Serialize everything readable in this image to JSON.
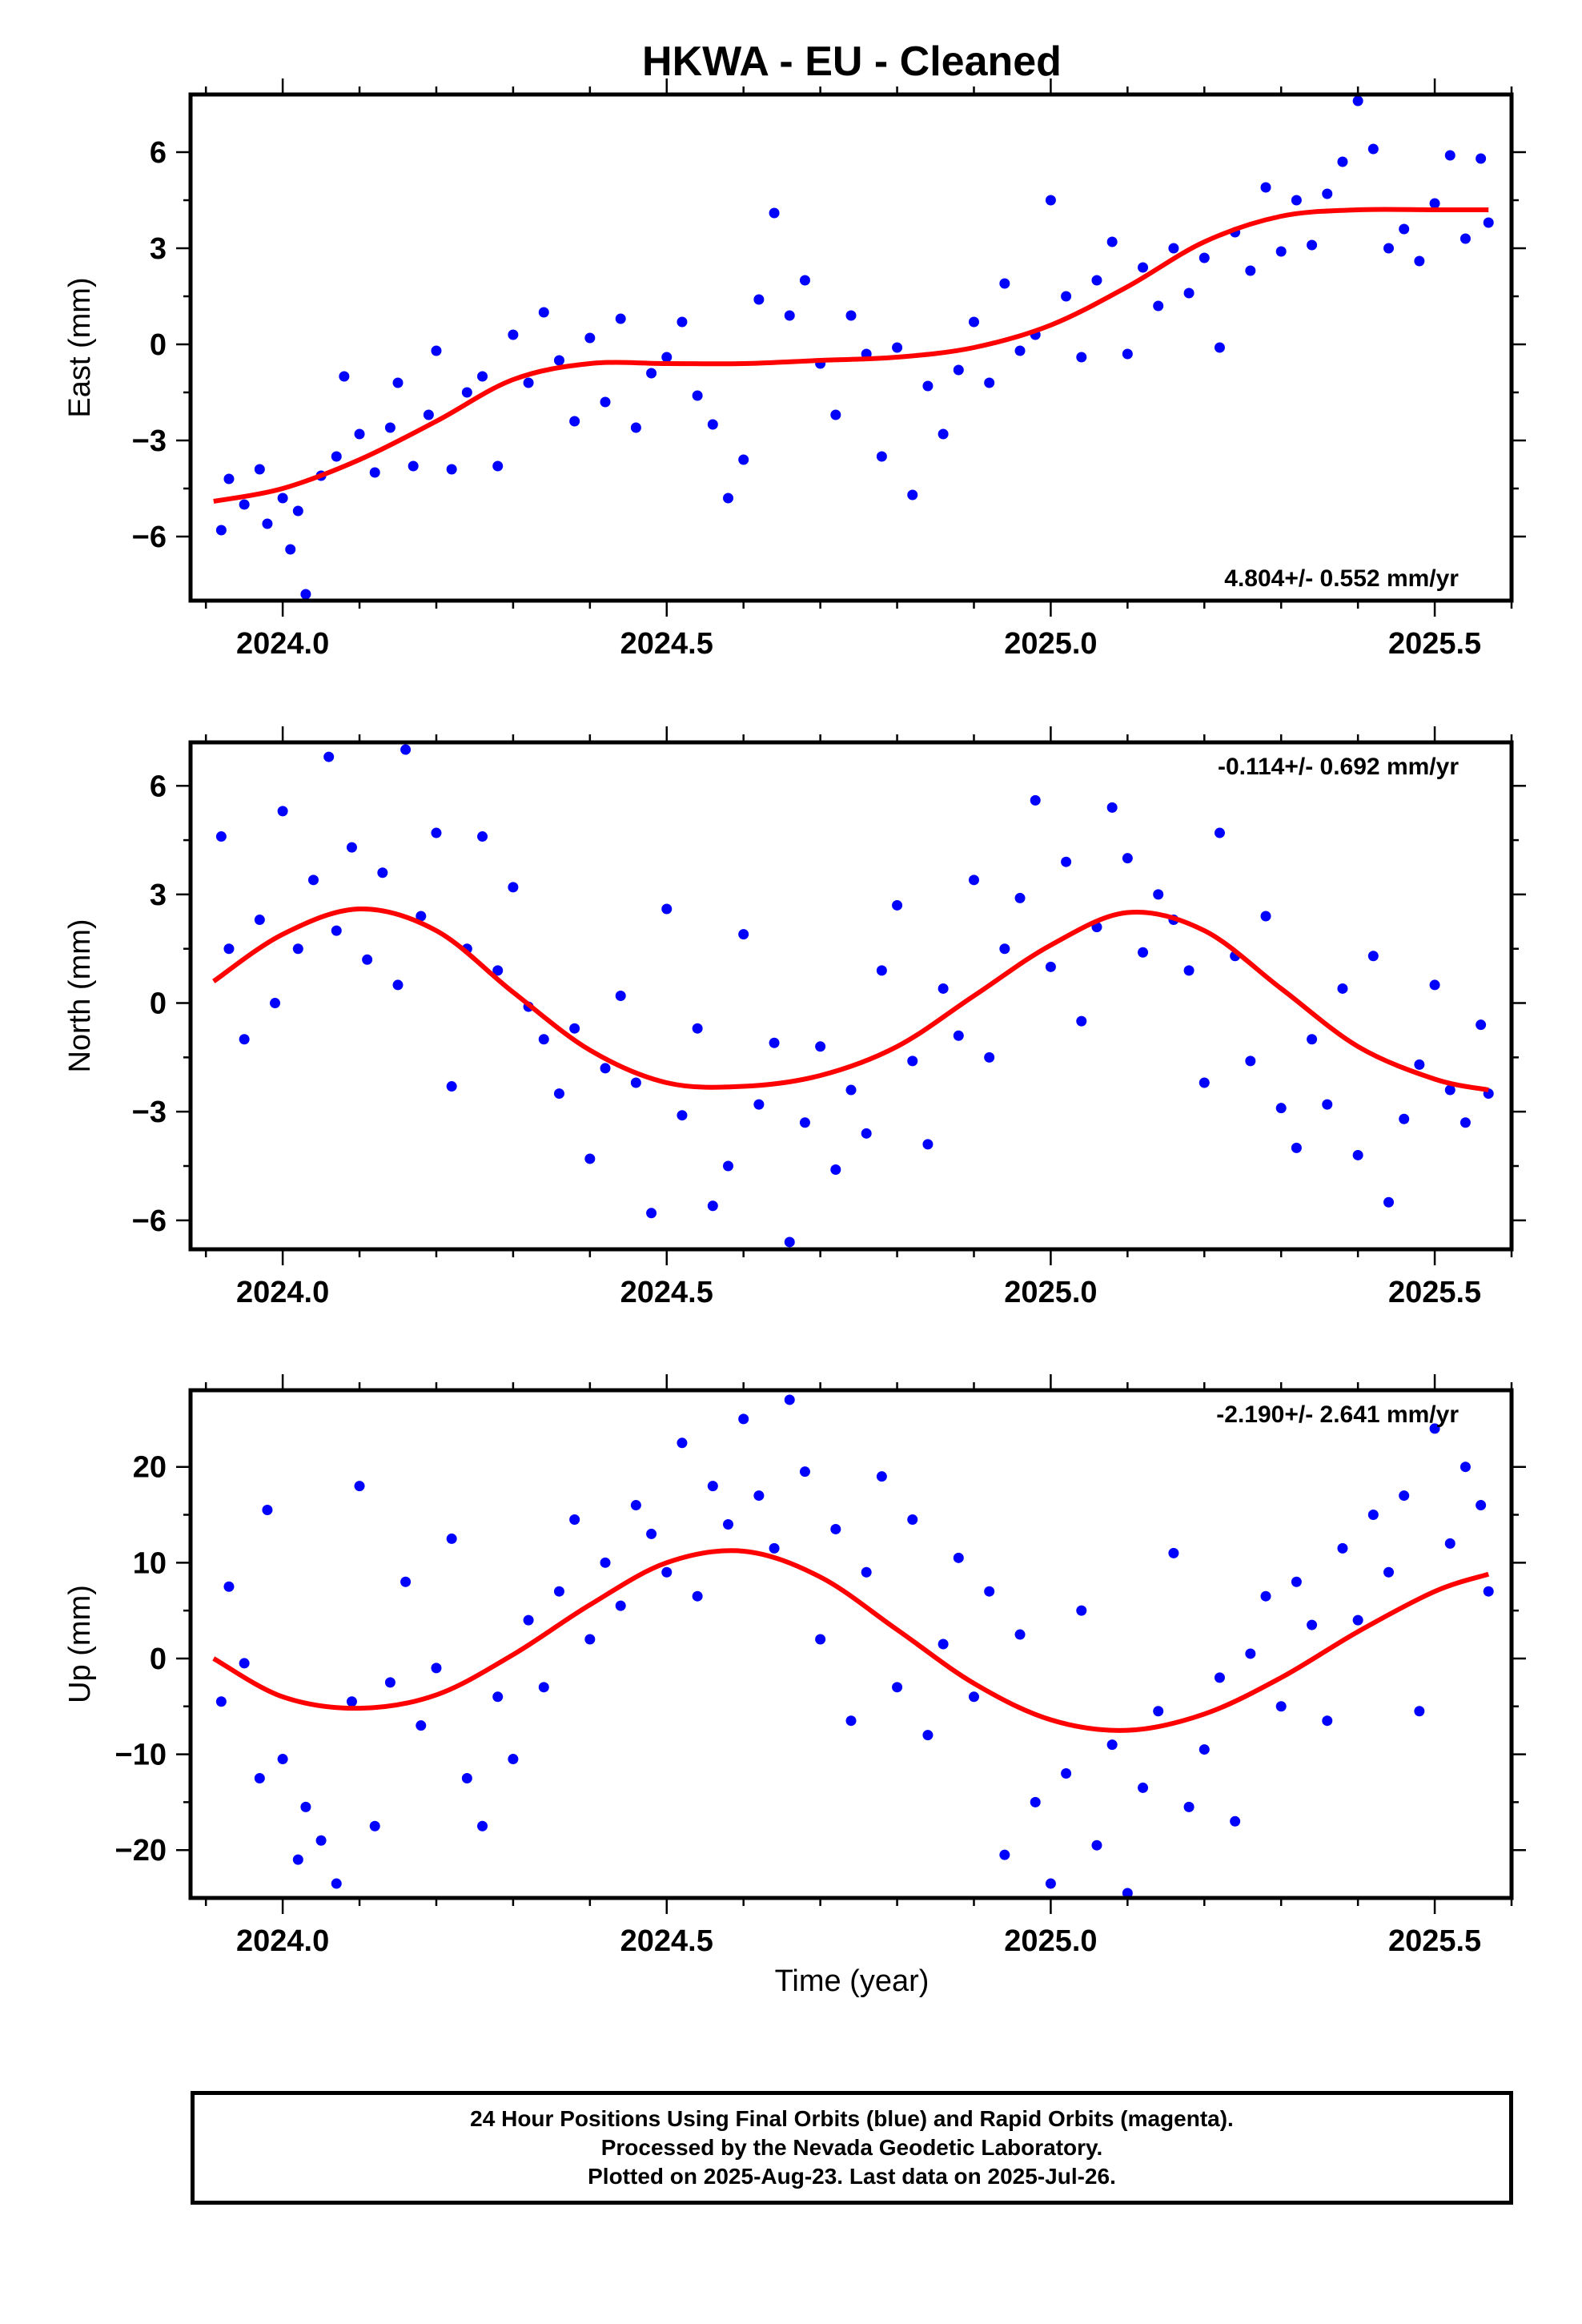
{
  "title": "HKWA  - EU - Cleaned",
  "xlabel": "Time (year)",
  "colors": {
    "points": "#0000ff",
    "fit": "#ff0000",
    "axes": "#000000"
  },
  "footer": {
    "line1": "24 Hour Positions Using Final Orbits (blue) and Rapid Orbits (magenta).",
    "line2": "Processed by the Nevada Geodetic Laboratory.",
    "line3": "Plotted on 2025-Aug-23. Last data on 2025-Jul-26."
  },
  "chart_data": [
    {
      "type": "scatter",
      "id": "east",
      "ylabel": "East (mm)",
      "xlim": [
        2023.88,
        2025.6
      ],
      "ylim": [
        -8,
        7.8
      ],
      "xticks": [
        2024.0,
        2024.5,
        2025.0,
        2025.5
      ],
      "xtick_labels": [
        "2024.0",
        "2024.5",
        "2025.0",
        "2025.5"
      ],
      "yticks": [
        -6,
        -3,
        0,
        3,
        6
      ],
      "ytick_labels": [
        "−6",
        "−3",
        "0",
        "3",
        "6"
      ],
      "annotation": "4.804+/- 0.552 mm/yr",
      "annotation_position": "bottom-right",
      "fit": {
        "x": [
          2023.91,
          2024.0,
          2024.1,
          2024.2,
          2024.3,
          2024.4,
          2024.5,
          2024.6,
          2024.7,
          2024.8,
          2024.9,
          2025.0,
          2025.1,
          2025.2,
          2025.3,
          2025.4,
          2025.5,
          2025.57
        ],
        "y": [
          -4.9,
          -4.5,
          -3.6,
          -2.4,
          -1.1,
          -0.6,
          -0.6,
          -0.6,
          -0.5,
          -0.4,
          -0.1,
          0.6,
          1.8,
          3.2,
          4.0,
          4.2,
          4.2,
          4.2
        ]
      },
      "points": {
        "x": [
          2023.92,
          2023.93,
          2023.95,
          2023.97,
          2023.98,
          2024.0,
          2024.01,
          2024.02,
          2024.03,
          2024.05,
          2024.07,
          2024.08,
          2024.1,
          2024.12,
          2024.14,
          2024.15,
          2024.17,
          2024.19,
          2024.2,
          2024.22,
          2024.24,
          2024.26,
          2024.28,
          2024.3,
          2024.32,
          2024.34,
          2024.36,
          2024.38,
          2024.4,
          2024.42,
          2024.44,
          2024.46,
          2024.48,
          2024.5,
          2024.52,
          2024.54,
          2024.56,
          2024.58,
          2024.6,
          2024.62,
          2024.64,
          2024.66,
          2024.68,
          2024.7,
          2024.72,
          2024.74,
          2024.76,
          2024.78,
          2024.8,
          2024.82,
          2024.84,
          2024.86,
          2024.88,
          2024.9,
          2024.92,
          2024.94,
          2024.96,
          2024.98,
          2025.0,
          2025.02,
          2025.04,
          2025.06,
          2025.08,
          2025.1,
          2025.12,
          2025.14,
          2025.16,
          2025.18,
          2025.2,
          2025.22,
          2025.24,
          2025.26,
          2025.28,
          2025.3,
          2025.32,
          2025.34,
          2025.36,
          2025.38,
          2025.4,
          2025.42,
          2025.44,
          2025.46,
          2025.48,
          2025.5,
          2025.52,
          2025.54,
          2025.56,
          2025.57
        ],
        "y": [
          -5.8,
          -4.2,
          -5.0,
          -3.9,
          -5.6,
          -4.8,
          -6.4,
          -5.2,
          -7.8,
          -4.1,
          -3.5,
          -1.0,
          -2.8,
          -4.0,
          -2.6,
          -1.2,
          -3.8,
          -2.2,
          -0.2,
          -3.9,
          -1.5,
          -1.0,
          -3.8,
          0.3,
          -1.2,
          1.0,
          -0.5,
          -2.4,
          0.2,
          -1.8,
          0.8,
          -2.6,
          -0.9,
          -0.4,
          0.7,
          -1.6,
          -2.5,
          -4.8,
          -3.6,
          1.4,
          4.1,
          0.9,
          2.0,
          -0.6,
          -2.2,
          0.9,
          -0.3,
          -3.5,
          -0.1,
          -4.7,
          -1.3,
          -2.8,
          -0.8,
          0.7,
          -1.2,
          1.9,
          -0.2,
          0.3,
          4.5,
          1.5,
          -0.4,
          2.0,
          3.2,
          -0.3,
          2.4,
          1.2,
          3.0,
          1.6,
          2.7,
          -0.1,
          3.5,
          2.3,
          4.9,
          2.9,
          4.5,
          3.1,
          4.7,
          5.7,
          7.6,
          6.1,
          3.0,
          3.6,
          2.6,
          4.4,
          5.9,
          3.3,
          5.8,
          3.8
        ]
      }
    },
    {
      "type": "scatter",
      "id": "north",
      "ylabel": "North (mm)",
      "xlim": [
        2023.88,
        2025.6
      ],
      "ylim": [
        -6.8,
        7.2
      ],
      "xticks": [
        2024.0,
        2024.5,
        2025.0,
        2025.5
      ],
      "xtick_labels": [
        "2024.0",
        "2024.5",
        "2025.0",
        "2025.5"
      ],
      "yticks": [
        -6,
        -3,
        0,
        3,
        6
      ],
      "ytick_labels": [
        "−6",
        "−3",
        "0",
        "3",
        "6"
      ],
      "annotation": "-0.114+/- 0.692 mm/yr",
      "annotation_position": "top-right",
      "fit": {
        "x": [
          2023.91,
          2024.0,
          2024.1,
          2024.2,
          2024.3,
          2024.4,
          2024.5,
          2024.6,
          2024.7,
          2024.8,
          2024.9,
          2025.0,
          2025.1,
          2025.2,
          2025.3,
          2025.4,
          2025.5,
          2025.57
        ],
        "y": [
          0.6,
          1.9,
          2.6,
          2.0,
          0.3,
          -1.3,
          -2.2,
          -2.3,
          -2.0,
          -1.2,
          0.2,
          1.6,
          2.5,
          2.0,
          0.4,
          -1.2,
          -2.1,
          -2.4
        ]
      },
      "points": {
        "x": [
          2023.92,
          2023.93,
          2023.95,
          2023.97,
          2023.99,
          2024.0,
          2024.02,
          2024.04,
          2024.06,
          2024.07,
          2024.09,
          2024.11,
          2024.13,
          2024.15,
          2024.16,
          2024.18,
          2024.2,
          2024.22,
          2024.24,
          2024.26,
          2024.28,
          2024.3,
          2024.32,
          2024.34,
          2024.36,
          2024.38,
          2024.4,
          2024.42,
          2024.44,
          2024.46,
          2024.48,
          2024.5,
          2024.52,
          2024.54,
          2024.56,
          2024.58,
          2024.6,
          2024.62,
          2024.64,
          2024.66,
          2024.68,
          2024.7,
          2024.72,
          2024.74,
          2024.76,
          2024.78,
          2024.8,
          2024.82,
          2024.84,
          2024.86,
          2024.88,
          2024.9,
          2024.92,
          2024.94,
          2024.96,
          2024.98,
          2025.0,
          2025.02,
          2025.04,
          2025.06,
          2025.08,
          2025.1,
          2025.12,
          2025.14,
          2025.16,
          2025.18,
          2025.2,
          2025.22,
          2025.24,
          2025.26,
          2025.28,
          2025.3,
          2025.32,
          2025.34,
          2025.36,
          2025.38,
          2025.4,
          2025.42,
          2025.44,
          2025.46,
          2025.48,
          2025.5,
          2025.52,
          2025.54,
          2025.56,
          2025.57
        ],
        "y": [
          4.6,
          1.5,
          -1.0,
          2.3,
          0.0,
          5.3,
          1.5,
          3.4,
          6.8,
          2.0,
          4.3,
          1.2,
          3.6,
          0.5,
          7.0,
          2.4,
          4.7,
          -2.3,
          1.5,
          4.6,
          0.9,
          3.2,
          -0.1,
          -1.0,
          -2.5,
          -0.7,
          -4.3,
          -1.8,
          0.2,
          -2.2,
          -5.8,
          2.6,
          -3.1,
          -0.7,
          -5.6,
          -4.5,
          1.9,
          -2.8,
          -1.1,
          -6.6,
          -3.3,
          -1.2,
          -4.6,
          -2.4,
          -3.6,
          0.9,
          2.7,
          -1.6,
          -3.9,
          0.4,
          -0.9,
          3.4,
          -1.5,
          1.5,
          2.9,
          5.6,
          1.0,
          3.9,
          -0.5,
          2.1,
          5.4,
          4.0,
          1.4,
          3.0,
          2.3,
          0.9,
          -2.2,
          4.7,
          1.3,
          -1.6,
          2.4,
          -2.9,
          -4.0,
          -1.0,
          -2.8,
          0.4,
          -4.2,
          1.3,
          -5.5,
          -3.2,
          -1.7,
          0.5,
          -2.4,
          -3.3,
          -0.6,
          -2.5
        ]
      }
    },
    {
      "type": "scatter",
      "id": "up",
      "ylabel": "Up (mm)",
      "xlim": [
        2023.88,
        2025.6
      ],
      "ylim": [
        -25,
        28
      ],
      "xticks": [
        2024.0,
        2024.5,
        2025.0,
        2025.5
      ],
      "xtick_labels": [
        "2024.0",
        "2024.5",
        "2025.0",
        "2025.5"
      ],
      "yticks": [
        -20,
        -10,
        0,
        10,
        20
      ],
      "ytick_labels": [
        "−20",
        "−10",
        "0",
        "10",
        "20"
      ],
      "annotation": "-2.190+/- 2.641 mm/yr",
      "annotation_position": "top-right",
      "fit": {
        "x": [
          2023.91,
          2024.0,
          2024.1,
          2024.2,
          2024.3,
          2024.4,
          2024.5,
          2024.6,
          2024.7,
          2024.8,
          2024.9,
          2025.0,
          2025.1,
          2025.2,
          2025.3,
          2025.4,
          2025.5,
          2025.57
        ],
        "y": [
          0.0,
          -4.0,
          -5.2,
          -3.8,
          0.4,
          5.6,
          10.0,
          11.2,
          8.5,
          3.0,
          -2.6,
          -6.4,
          -7.5,
          -5.8,
          -2.0,
          2.8,
          7.0,
          8.8
        ]
      },
      "points": {
        "x": [
          2023.92,
          2023.93,
          2023.95,
          2023.97,
          2023.98,
          2024.0,
          2024.02,
          2024.03,
          2024.05,
          2024.07,
          2024.09,
          2024.1,
          2024.12,
          2024.14,
          2024.16,
          2024.18,
          2024.2,
          2024.22,
          2024.24,
          2024.26,
          2024.28,
          2024.3,
          2024.32,
          2024.34,
          2024.36,
          2024.38,
          2024.4,
          2024.42,
          2024.44,
          2024.46,
          2024.48,
          2024.5,
          2024.52,
          2024.54,
          2024.56,
          2024.58,
          2024.6,
          2024.62,
          2024.64,
          2024.66,
          2024.68,
          2024.7,
          2024.72,
          2024.74,
          2024.76,
          2024.78,
          2024.8,
          2024.82,
          2024.84,
          2024.86,
          2024.88,
          2024.9,
          2024.92,
          2024.94,
          2024.96,
          2024.98,
          2025.0,
          2025.02,
          2025.04,
          2025.06,
          2025.08,
          2025.1,
          2025.12,
          2025.14,
          2025.16,
          2025.18,
          2025.2,
          2025.22,
          2025.24,
          2025.26,
          2025.28,
          2025.3,
          2025.32,
          2025.34,
          2025.36,
          2025.38,
          2025.4,
          2025.42,
          2025.44,
          2025.46,
          2025.48,
          2025.5,
          2025.52,
          2025.54,
          2025.56,
          2025.57
        ],
        "y": [
          -4.5,
          7.5,
          -0.5,
          -12.5,
          15.5,
          -10.5,
          -21.0,
          -15.5,
          -19.0,
          -23.5,
          -4.5,
          18.0,
          -17.5,
          -2.5,
          8.0,
          -7.0,
          -1.0,
          12.5,
          -12.5,
          -17.5,
          -4.0,
          -10.5,
          4.0,
          -3.0,
          7.0,
          14.5,
          2.0,
          10.0,
          5.5,
          16.0,
          13.0,
          9.0,
          22.5,
          6.5,
          18.0,
          14.0,
          25.0,
          17.0,
          11.5,
          27.0,
          19.5,
          2.0,
          13.5,
          -6.5,
          9.0,
          19.0,
          -3.0,
          14.5,
          -8.0,
          1.5,
          10.5,
          -4.0,
          7.0,
          -20.5,
          2.5,
          -15.0,
          -23.5,
          -12.0,
          5.0,
          -19.5,
          -9.0,
          -24.5,
          -13.5,
          -5.5,
          11.0,
          -15.5,
          -9.5,
          -2.0,
          -17.0,
          0.5,
          6.5,
          -5.0,
          8.0,
          3.5,
          -6.5,
          11.5,
          4.0,
          15.0,
          9.0,
          17.0,
          -5.5,
          24.0,
          12.0,
          20.0,
          16.0,
          7.0
        ]
      }
    }
  ]
}
